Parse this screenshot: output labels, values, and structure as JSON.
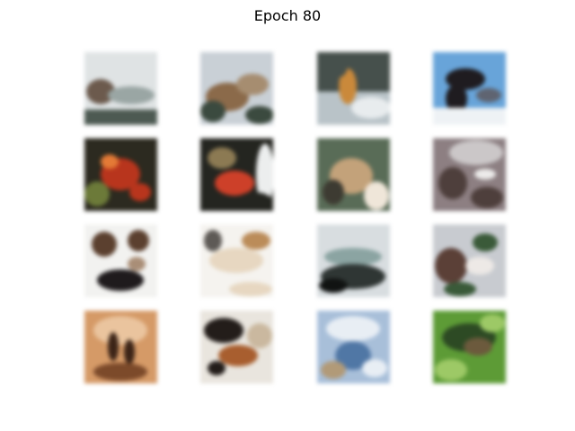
{
  "figure": {
    "title": "Epoch 80"
  },
  "samples": [
    {
      "colors": [
        "#dfe3e4",
        "#6b5a4e",
        "#9aa6a4",
        "#4d5a52"
      ]
    },
    {
      "colors": [
        "#c9d0d6",
        "#8a6a4c",
        "#3c4a3f",
        "#a58d72"
      ]
    },
    {
      "colors": [
        "#46504c",
        "#b9c3c8",
        "#c7893f",
        "#e8ecee"
      ]
    },
    {
      "colors": [
        "#6aa4d6",
        "#1f1c20",
        "#eef2f5",
        "#5f6470"
      ]
    },
    {
      "colors": [
        "#2c2a20",
        "#b3361f",
        "#6c7a3c",
        "#e07b3a"
      ]
    },
    {
      "colors": [
        "#242520",
        "#c8412b",
        "#8b7a55",
        "#eceeee"
      ]
    },
    {
      "colors": [
        "#5a6c58",
        "#c2a27c",
        "#efe6da",
        "#3d3b32"
      ]
    },
    {
      "colors": [
        "#8c7f82",
        "#cbc7c8",
        "#4d3f3c",
        "#ecebea"
      ]
    },
    {
      "colors": [
        "#f2f2f0",
        "#5a4030",
        "#1f1b1d",
        "#a88e78"
      ]
    },
    {
      "colors": [
        "#f5f3ef",
        "#b98c5c",
        "#e6d7c2",
        "#5e5a56"
      ]
    },
    {
      "colors": [
        "#d8dde0",
        "#2f3634",
        "#8ca4a2",
        "#111312"
      ]
    },
    {
      "colors": [
        "#c8cbd0",
        "#5a4038",
        "#3b5a3a",
        "#ede9e6"
      ]
    },
    {
      "colors": [
        "#d39a6a",
        "#3b2418",
        "#e8c4a0",
        "#7a4a2c"
      ]
    },
    {
      "colors": [
        "#e9e5de",
        "#231d1a",
        "#a55f32",
        "#c9b8a0"
      ]
    },
    {
      "colors": [
        "#a9bfd8",
        "#e8eef4",
        "#5277a3",
        "#b09a7a"
      ]
    },
    {
      "colors": [
        "#5f9a3a",
        "#2e4a25",
        "#9ec86a",
        "#6b5a3e"
      ]
    }
  ]
}
